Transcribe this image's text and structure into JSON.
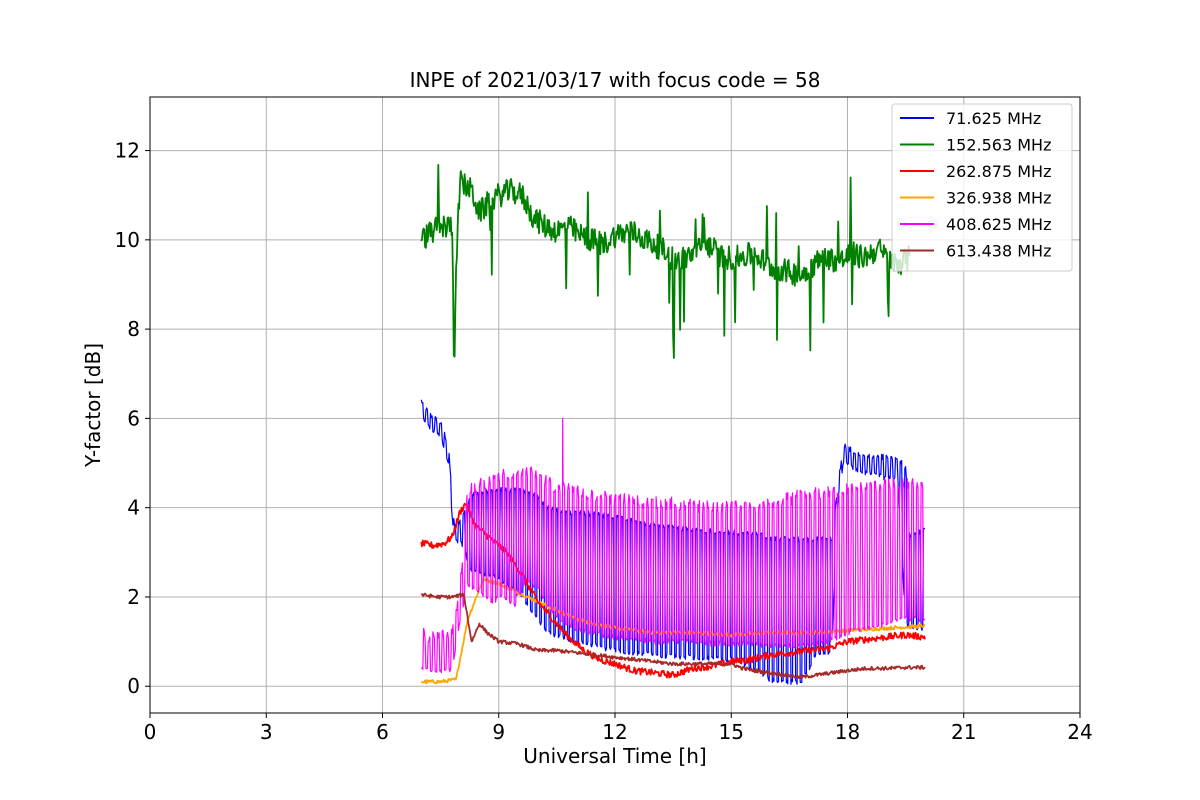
{
  "chart_data": {
    "type": "line",
    "title": "INPE of 2021/03/17 with focus code = 58",
    "xlabel": "Universal Time [h]",
    "ylabel": "Y-factor [dB]",
    "xlim": [
      0,
      24
    ],
    "ylim": [
      -0.6,
      13.2
    ],
    "xticks": [
      0,
      3,
      6,
      9,
      12,
      15,
      18,
      21,
      24
    ],
    "yticks": [
      0,
      2,
      4,
      6,
      8,
      10,
      12
    ],
    "grid": true,
    "legend_position": "top-right",
    "series": [
      {
        "name": " 71.625 MHz",
        "color": "#0000ff",
        "x": [
          7.0,
          7.2,
          7.5,
          7.7,
          7.85,
          8.0,
          8.3,
          9.0,
          9.6,
          10.0,
          10.3,
          10.6,
          11.0,
          12.0,
          13.0,
          14.0,
          15.0,
          15.7,
          16.0,
          16.3,
          16.8,
          17.2,
          17.6,
          17.75,
          17.9,
          18.3,
          18.8,
          19.3,
          19.5,
          19.6,
          20.0
        ],
        "y": [
          6.4,
          6.1,
          5.9,
          5.4,
          3.6,
          3.7,
          4.3,
          4.4,
          4.4,
          4.25,
          4.0,
          3.9,
          3.9,
          3.8,
          3.6,
          3.5,
          3.45,
          3.4,
          3.3,
          3.3,
          3.3,
          3.3,
          3.3,
          4.5,
          5.4,
          5.2,
          5.15,
          5.1,
          4.9,
          3.4,
          3.5
        ],
        "low_y": [
          6.0,
          5.8,
          5.6,
          5.0,
          3.2,
          3.3,
          2.6,
          2.4,
          2.0,
          1.5,
          1.2,
          1.1,
          1.0,
          0.8,
          0.7,
          0.65,
          0.6,
          0.35,
          0.15,
          0.1,
          0.1,
          0.7,
          0.8,
          4.2,
          5.0,
          4.8,
          4.7,
          4.6,
          1.4,
          1.3,
          1.3
        ]
      },
      {
        "name": "152.563 MHz",
        "color": "#008000",
        "x": [
          7.0,
          7.3,
          7.6,
          7.8,
          7.85,
          7.9,
          8.0,
          8.3,
          8.5,
          8.8,
          9.0,
          9.3,
          9.6,
          9.9,
          10.2,
          10.5,
          10.8,
          11.1,
          11.4,
          11.7,
          12.0,
          12.4,
          12.8,
          13.2,
          13.6,
          14.0,
          14.4,
          14.8,
          15.2,
          15.6,
          16.0,
          16.4,
          16.8,
          17.2,
          17.5,
          17.8,
          18.1,
          18.4,
          18.8,
          19.1,
          19.4,
          19.6
        ],
        "y": [
          10.0,
          10.2,
          10.3,
          10.3,
          7.0,
          9.5,
          11.3,
          11.1,
          10.6,
          10.9,
          11.0,
          11.1,
          11.0,
          10.5,
          10.3,
          10.2,
          10.3,
          10.1,
          10.0,
          9.9,
          10.1,
          10.2,
          10.0,
          9.8,
          9.5,
          9.7,
          9.9,
          9.6,
          9.6,
          9.7,
          9.4,
          9.3,
          9.2,
          9.5,
          9.6,
          9.5,
          9.7,
          9.6,
          9.8,
          9.5,
          9.5,
          9.6
        ]
      },
      {
        "name": "262.875 MHz",
        "color": "#ff0000",
        "x": [
          7.0,
          7.3,
          7.6,
          7.8,
          8.0,
          8.15,
          8.4,
          8.8,
          9.2,
          9.6,
          10.0,
          10.4,
          10.8,
          11.2,
          11.6,
          12.0,
          12.5,
          13.0,
          13.5,
          14.0,
          14.5,
          15.0,
          15.5,
          16.0,
          16.5,
          17.0,
          17.5,
          18.0,
          18.5,
          19.0,
          19.5,
          20.0
        ],
        "y": [
          3.2,
          3.15,
          3.2,
          3.35,
          3.9,
          4.1,
          3.6,
          3.3,
          3.0,
          2.5,
          1.9,
          1.5,
          1.1,
          0.8,
          0.6,
          0.5,
          0.35,
          0.3,
          0.25,
          0.4,
          0.45,
          0.55,
          0.6,
          0.7,
          0.75,
          0.8,
          0.85,
          1.0,
          1.05,
          1.1,
          1.15,
          1.1
        ]
      },
      {
        "name": "326.938 MHz",
        "color": "#ffa500",
        "x": [
          7.0,
          7.5,
          7.9,
          8.2,
          8.6,
          9.0,
          10.0,
          11.0,
          12.0,
          13.0,
          14.0,
          15.0,
          16.0,
          17.0,
          18.0,
          19.0,
          20.0
        ],
        "y": [
          0.1,
          0.1,
          0.15,
          1.5,
          2.4,
          2.3,
          1.9,
          1.5,
          1.3,
          1.2,
          1.2,
          1.15,
          1.2,
          1.2,
          1.25,
          1.3,
          1.35
        ]
      },
      {
        "name": "408.625 MHz",
        "color": "#ff00ff",
        "x": [
          7.0,
          7.3,
          7.6,
          7.8,
          8.0,
          8.2,
          8.5,
          8.8,
          9.1,
          9.4,
          9.7,
          10.0,
          10.2,
          10.4,
          10.6,
          10.8,
          11.0,
          11.3,
          11.6,
          12.0,
          12.5,
          13.0,
          13.5,
          14.0,
          14.5,
          15.0,
          15.5,
          16.0,
          16.5,
          17.0,
          17.5,
          18.0,
          18.5,
          19.0,
          19.5,
          20.0
        ],
        "y": [
          0.4,
          0.3,
          0.35,
          0.4,
          1.5,
          2.3,
          2.1,
          1.9,
          2.0,
          1.8,
          2.4,
          2.2,
          1.9,
          1.6,
          1.5,
          1.4,
          1.3,
          1.2,
          1.15,
          1.1,
          1.05,
          1.0,
          1.0,
          1.0,
          0.95,
          0.95,
          0.95,
          0.9,
          0.9,
          0.9,
          1.0,
          1.2,
          1.3,
          1.4,
          1.5,
          1.5
        ],
        "high_y": [
          1.2,
          1.1,
          1.15,
          1.2,
          2.2,
          4.4,
          4.5,
          4.6,
          4.7,
          4.8,
          4.85,
          4.7,
          4.6,
          4.5,
          4.45,
          4.4,
          4.35,
          4.3,
          4.25,
          4.2,
          4.15,
          4.1,
          4.1,
          4.05,
          4.0,
          4.0,
          4.05,
          4.1,
          4.2,
          4.3,
          4.35,
          4.4,
          4.45,
          4.5,
          4.55,
          4.5
        ],
        "spikes": [
          {
            "x": 10.65,
            "y": 6.0
          }
        ]
      },
      {
        "name": "613.438 MHz",
        "color": "#a52a2a",
        "x": [
          7.0,
          7.4,
          7.8,
          8.1,
          8.3,
          8.5,
          8.7,
          9.0,
          9.5,
          10.0,
          10.5,
          11.0,
          11.5,
          12.0,
          12.5,
          13.0,
          13.5,
          14.0,
          14.5,
          15.0,
          15.3,
          15.6,
          16.0,
          16.4,
          16.8,
          17.2,
          17.6,
          18.0,
          18.5,
          19.0,
          19.5,
          20.0
        ],
        "y": [
          2.05,
          2.0,
          2.0,
          2.05,
          1.0,
          1.4,
          1.2,
          1.0,
          0.95,
          0.8,
          0.8,
          0.75,
          0.7,
          0.65,
          0.6,
          0.55,
          0.5,
          0.5,
          0.5,
          0.5,
          0.4,
          0.35,
          0.3,
          0.25,
          0.2,
          0.25,
          0.3,
          0.35,
          0.4,
          0.4,
          0.42,
          0.42
        ]
      }
    ]
  }
}
